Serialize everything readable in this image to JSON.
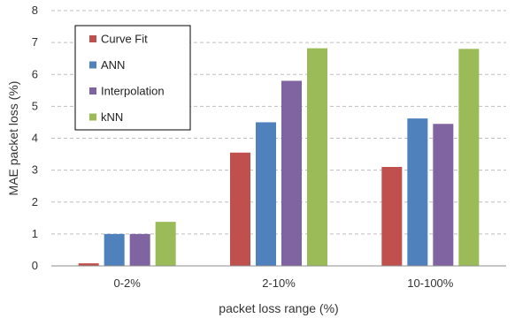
{
  "chart_data": {
    "type": "bar",
    "categories": [
      "0-2%",
      "2-10%",
      "10-100%"
    ],
    "series": [
      {
        "name": "Curve Fit",
        "color": "#c0504d",
        "values": [
          0.08,
          3.55,
          3.1
        ]
      },
      {
        "name": "ANN",
        "color": "#4f81bd",
        "values": [
          1.0,
          4.5,
          4.62
        ]
      },
      {
        "name": "Interpolation",
        "color": "#8064a2",
        "values": [
          1.0,
          5.8,
          4.45
        ]
      },
      {
        "name": "kNN",
        "color": "#9bbb59",
        "values": [
          1.38,
          6.82,
          6.8
        ]
      }
    ],
    "xlabel": "packet loss range (%)",
    "ylabel": "MAE packet loss (%)",
    "ylim": [
      0,
      8
    ],
    "yticks": [
      "0",
      "1",
      "2",
      "3",
      "4",
      "5",
      "6",
      "7",
      "8"
    ],
    "grid": true,
    "legend_position": "top-left"
  }
}
